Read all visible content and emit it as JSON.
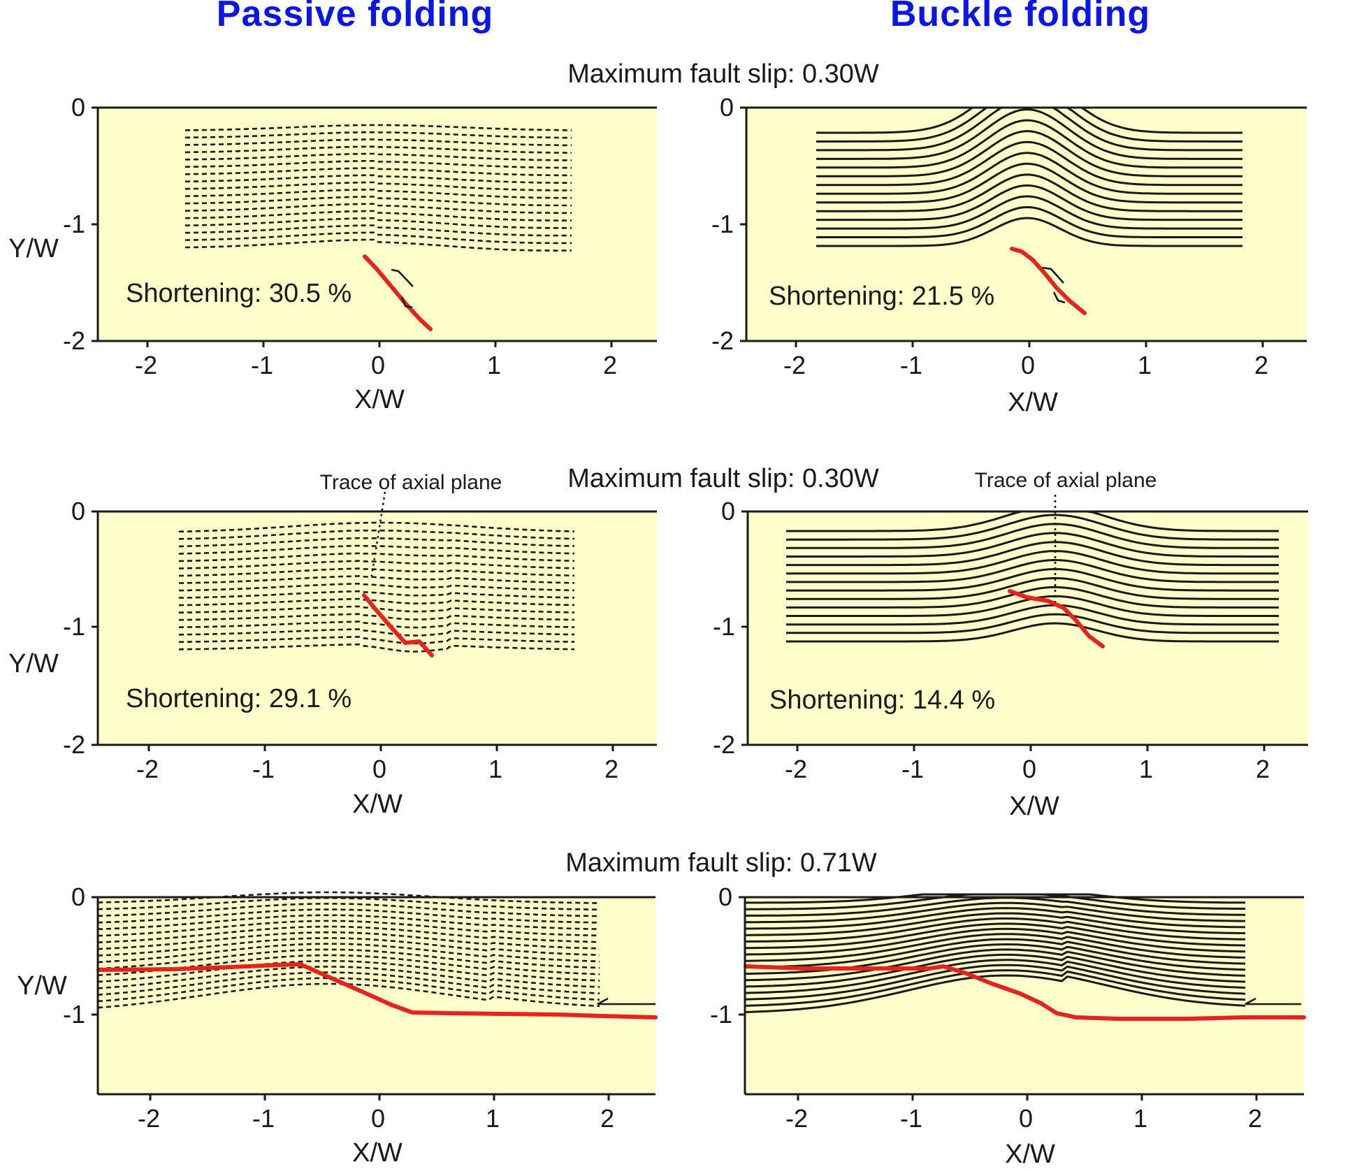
{
  "columns": {
    "passive": {
      "title": "Passive folding"
    },
    "buckle": {
      "title": "Buckle folding"
    }
  },
  "rows": [
    {
      "slip_title": "Maximum fault slip: 0.30W"
    },
    {
      "slip_title": "Maximum fault slip: 0.30W"
    },
    {
      "slip_title": "Maximum fault slip: 0.71W"
    }
  ],
  "axes": {
    "x_label": "X/W",
    "y_label": "Y/W",
    "x_ticks": [
      "-2",
      "-1",
      "0",
      "1",
      "2"
    ],
    "y_ticks_full": [
      "0",
      "-1",
      "-2"
    ],
    "y_ticks_short": [
      "0",
      "-1"
    ]
  },
  "panels": [
    {
      "id": "passive-1",
      "style": "dashed",
      "shortening": "Shortening: 30.5 %",
      "axial_label": ""
    },
    {
      "id": "buckle-1",
      "style": "solid",
      "shortening": "Shortening: 21.5 %",
      "axial_label": ""
    },
    {
      "id": "passive-2",
      "style": "dashed",
      "shortening": "Shortening: 29.1 %",
      "axial_label": "Trace of axial plane"
    },
    {
      "id": "buckle-2",
      "style": "solid",
      "shortening": "Shortening: 14.4 %",
      "axial_label": "Trace of axial plane"
    },
    {
      "id": "passive-3",
      "style": "dashed",
      "shortening": "",
      "axial_label": ""
    },
    {
      "id": "buckle-3",
      "style": "solid",
      "shortening": "",
      "axial_label": ""
    }
  ],
  "colors": {
    "title_blue": "#0a16e8",
    "panel_background": "#ffffcc",
    "fault_red": "#e8231e",
    "ink": "#1a1a1a"
  }
}
